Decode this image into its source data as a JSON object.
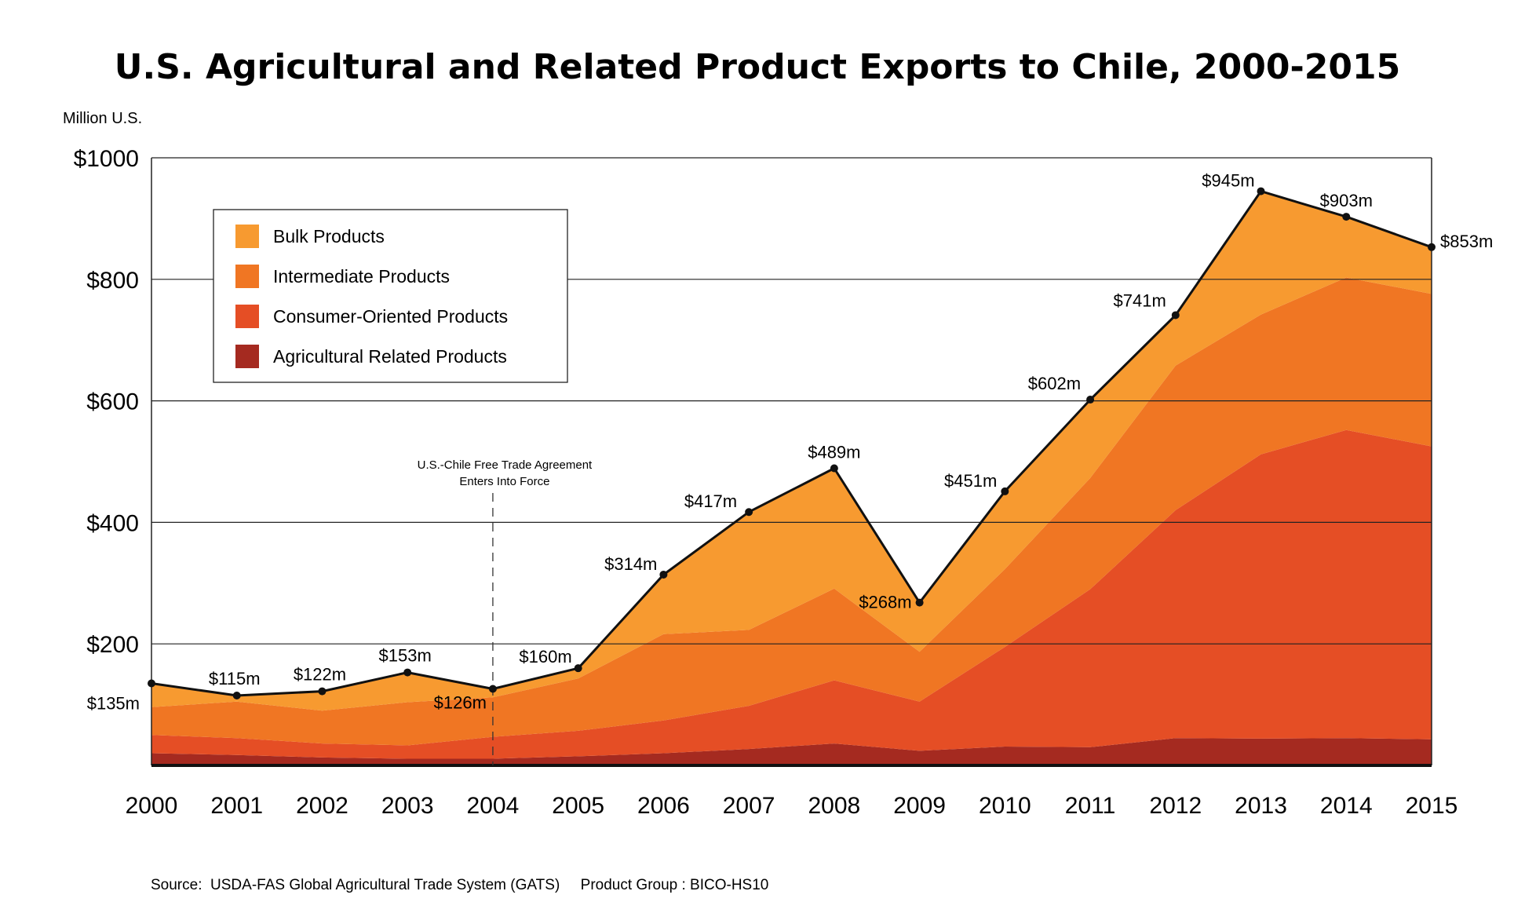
{
  "chart_data": {
    "type": "area",
    "title": "U.S. Agricultural and Related Product Exports to Chile, 2000-2015",
    "ylabel": "Million U.S.",
    "xlabel": "",
    "ylim": [
      0,
      1000
    ],
    "grid": true,
    "legend_position": "top-left",
    "x": [
      "2000",
      "2001",
      "2002",
      "2003",
      "2004",
      "2005",
      "2006",
      "2007",
      "2008",
      "2009",
      "2010",
      "2011",
      "2012",
      "2013",
      "2014",
      "2015"
    ],
    "y_ticks": [
      "$200",
      "$400",
      "$600",
      "$800",
      "$1000"
    ],
    "y_tick_values": [
      200,
      400,
      600,
      800,
      1000
    ],
    "series": [
      {
        "name": "Agricultural Related Products",
        "color": "#a52a20",
        "values": [
          20,
          17,
          13,
          11,
          11,
          15,
          20,
          27,
          36,
          24,
          31,
          30,
          45,
          44,
          45,
          43
        ]
      },
      {
        "name": "Consumer-Oriented Products",
        "color": "#e54e25",
        "values": [
          30,
          28,
          23,
          22,
          36,
          42,
          54,
          71,
          104,
          81,
          164,
          260,
          375,
          468,
          507,
          482
        ]
      },
      {
        "name": "Intermediate Products",
        "color": "#f07623",
        "values": [
          46,
          60,
          54,
          71,
          65,
          86,
          142,
          125,
          151,
          82,
          128,
          183,
          238,
          230,
          251,
          251
        ]
      },
      {
        "name": "Bulk Products",
        "color": "#f79a30",
        "values": [
          39,
          10,
          32,
          49,
          14,
          17,
          98,
          194,
          198,
          81,
          128,
          129,
          83,
          203,
          100,
          77
        ]
      }
    ],
    "totals": {
      "values": [
        135,
        115,
        122,
        153,
        126,
        160,
        314,
        417,
        489,
        268,
        451,
        602,
        741,
        945,
        903,
        853
      ],
      "labels": [
        "$135m",
        "$115m",
        "$122m",
        "$153m",
        "$126m",
        "$160m",
        "$314m",
        "$417m",
        "$489m",
        "$268m",
        "$451m",
        "$602m",
        "$741m",
        "$945m",
        "$903m",
        "$853m"
      ]
    },
    "legend": [
      "Bulk Products",
      "Intermediate Products",
      "Consumer-Oriented Products",
      "Agricultural Related Products"
    ],
    "annotation": {
      "x": "2004",
      "line1": "U.S.-Chile Free Trade Agreement",
      "line2": "Enters Into Force"
    },
    "source": "Source:  USDA-FAS Global Agricultural Trade System (GATS)     Product Group : BICO-HS10"
  }
}
